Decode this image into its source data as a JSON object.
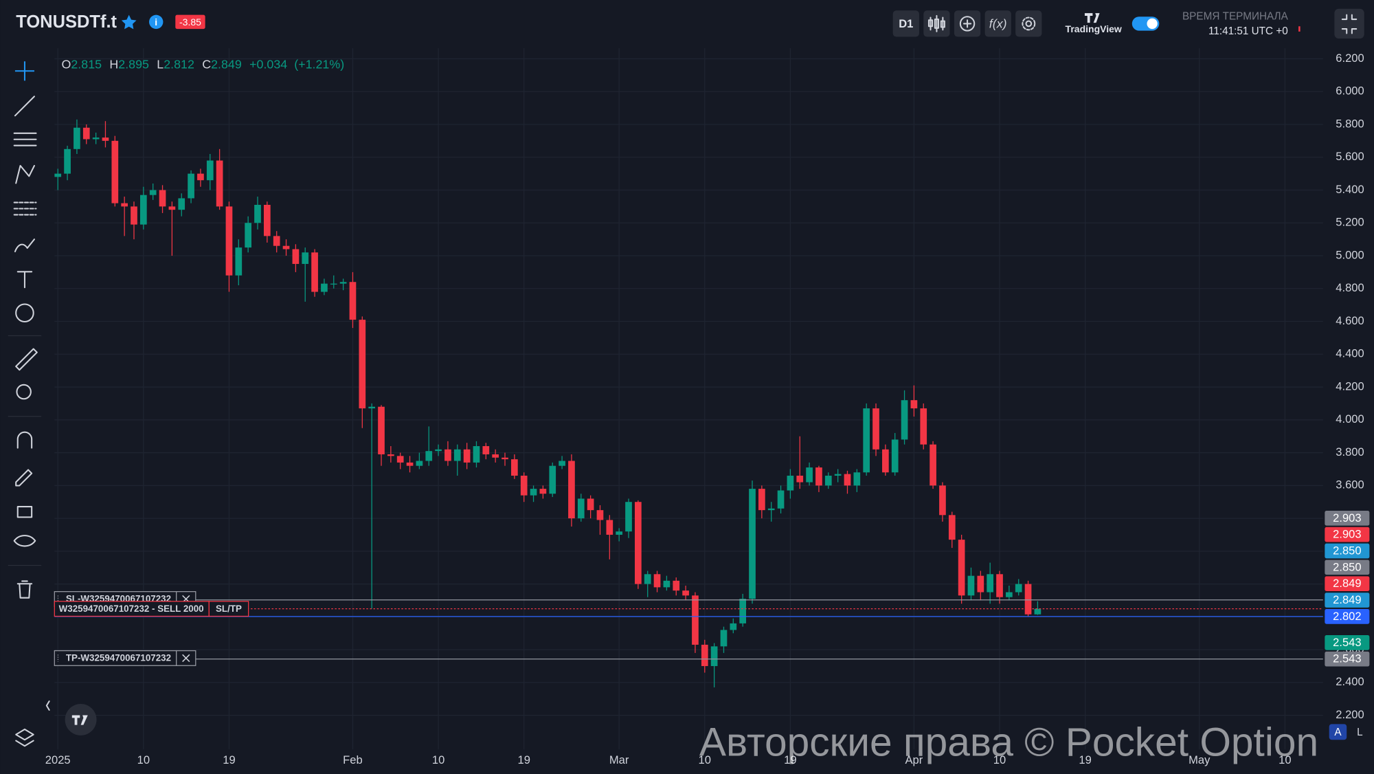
{
  "header": {
    "symbol": "TONUSDTf.t",
    "change_badge": -3.85,
    "timeframe": "D1",
    "brand": "TradingView",
    "time_caption": "ВРЕМЯ ТЕРМИНАЛА",
    "time": "11:41:51 UTC +0"
  },
  "legend": {
    "o_label": "O",
    "open": 2.815,
    "h_label": "H",
    "high": 2.895,
    "l_label": "L",
    "low": 2.812,
    "c_label": "C",
    "close": 2.849,
    "change": "+0.034",
    "change_pct": "(+1.21%)"
  },
  "watermark": "Авторские права © Pocket Option",
  "scale_buttons": [
    "A",
    "L"
  ],
  "chart_data": {
    "type": "candlestick",
    "up_color": "#089981",
    "down_color": "#f23645",
    "grid": true,
    "x": [
      "2025-01-01",
      "2025-01-02",
      "2025-01-03",
      "2025-01-04",
      "2025-01-05",
      "2025-01-06",
      "2025-01-07",
      "2025-01-08",
      "2025-01-09",
      "2025-01-10",
      "2025-01-11",
      "2025-01-12",
      "2025-01-13",
      "2025-01-14",
      "2025-01-15",
      "2025-01-16",
      "2025-01-17",
      "2025-01-18",
      "2025-01-19",
      "2025-01-20",
      "2025-01-21",
      "2025-01-22",
      "2025-01-23",
      "2025-01-24",
      "2025-01-25",
      "2025-01-26",
      "2025-01-27",
      "2025-01-28",
      "2025-01-29",
      "2025-01-30",
      "2025-01-31",
      "2025-02-01",
      "2025-02-02",
      "2025-02-03",
      "2025-02-04",
      "2025-02-05",
      "2025-02-06",
      "2025-02-07",
      "2025-02-08",
      "2025-02-09",
      "2025-02-10",
      "2025-02-11",
      "2025-02-12",
      "2025-02-13",
      "2025-02-14",
      "2025-02-15",
      "2025-02-16",
      "2025-02-17",
      "2025-02-18",
      "2025-02-19",
      "2025-02-20",
      "2025-02-21",
      "2025-02-22",
      "2025-02-23",
      "2025-02-24",
      "2025-02-25",
      "2025-02-26",
      "2025-02-27",
      "2025-02-28",
      "2025-03-01",
      "2025-03-02",
      "2025-03-03",
      "2025-03-04",
      "2025-03-05",
      "2025-03-06",
      "2025-03-07",
      "2025-03-08",
      "2025-03-09",
      "2025-03-10",
      "2025-03-11",
      "2025-03-12",
      "2025-03-13",
      "2025-03-14",
      "2025-03-15",
      "2025-03-16",
      "2025-03-17",
      "2025-03-18",
      "2025-03-19",
      "2025-03-20",
      "2025-03-21",
      "2025-03-22",
      "2025-03-23",
      "2025-03-24",
      "2025-03-25",
      "2025-03-26",
      "2025-03-27",
      "2025-03-28",
      "2025-03-29",
      "2025-03-30",
      "2025-03-31",
      "2025-04-01",
      "2025-04-02",
      "2025-04-03",
      "2025-04-04",
      "2025-04-05",
      "2025-04-06",
      "2025-04-07",
      "2025-04-08",
      "2025-04-09",
      "2025-04-10",
      "2025-04-11",
      "2025-04-12",
      "2025-04-13",
      "2025-04-14"
    ],
    "open": [
      5.48,
      5.5,
      5.65,
      5.78,
      5.71,
      5.72,
      5.7,
      5.32,
      5.3,
      5.19,
      5.37,
      5.4,
      5.3,
      5.28,
      5.35,
      5.5,
      5.46,
      5.58,
      5.3,
      4.88,
      5.05,
      5.2,
      5.31,
      5.12,
      5.06,
      5.04,
      4.95,
      5.02,
      4.78,
      4.83,
      4.83,
      4.84,
      4.61,
      4.07,
      4.08,
      3.79,
      3.78,
      3.74,
      3.72,
      3.75,
      3.81,
      3.82,
      3.75,
      3.82,
      3.74,
      3.84,
      3.79,
      3.77,
      3.76,
      3.66,
      3.54,
      3.58,
      3.55,
      3.72,
      3.75,
      3.4,
      3.52,
      3.45,
      3.39,
      3.3,
      3.32,
      3.5,
      3.0,
      3.06,
      2.98,
      3.02,
      2.96,
      2.93,
      2.63,
      2.5,
      2.62,
      2.72,
      2.76,
      2.91,
      3.58,
      3.45,
      3.46,
      3.57,
      3.66,
      3.62,
      3.71,
      3.6,
      3.66,
      3.67,
      3.6,
      3.68,
      4.07,
      3.82,
      3.68,
      3.88,
      4.12,
      4.07,
      3.85,
      3.6,
      3.42,
      3.27,
      2.93,
      3.05,
      2.95,
      3.06,
      2.92,
      2.95,
      3.0,
      2.815
    ],
    "high": [
      5.53,
      5.67,
      5.83,
      5.8,
      5.75,
      5.82,
      5.73,
      5.36,
      5.33,
      5.42,
      5.44,
      5.43,
      5.33,
      5.38,
      5.52,
      5.53,
      5.62,
      5.65,
      5.33,
      5.1,
      5.24,
      5.36,
      5.33,
      5.15,
      5.1,
      5.07,
      5.05,
      5.04,
      4.86,
      4.88,
      4.86,
      4.9,
      4.63,
      4.1,
      4.09,
      3.84,
      3.8,
      3.78,
      3.8,
      3.96,
      3.85,
      3.87,
      3.85,
      3.86,
      3.87,
      3.86,
      3.82,
      3.8,
      3.79,
      3.68,
      3.6,
      3.6,
      3.74,
      3.78,
      3.79,
      3.55,
      3.54,
      3.48,
      3.42,
      3.34,
      3.52,
      3.51,
      3.08,
      3.08,
      3.05,
      3.04,
      2.99,
      2.95,
      2.66,
      2.64,
      2.74,
      2.79,
      2.94,
      3.63,
      3.6,
      3.5,
      3.6,
      3.7,
      3.9,
      3.74,
      3.72,
      3.68,
      3.7,
      3.69,
      3.7,
      4.1,
      4.1,
      3.85,
      3.92,
      4.18,
      4.21,
      4.1,
      3.87,
      3.62,
      3.44,
      3.3,
      3.1,
      3.08,
      3.13,
      3.08,
      2.99,
      3.03,
      3.02,
      2.895
    ],
    "low": [
      5.4,
      5.46,
      5.62,
      5.68,
      5.68,
      5.66,
      5.3,
      5.12,
      5.1,
      5.16,
      5.34,
      5.26,
      5.0,
      5.24,
      5.32,
      5.42,
      5.4,
      5.28,
      4.78,
      4.82,
      5.02,
      5.16,
      5.08,
      5.02,
      5.0,
      4.9,
      4.72,
      4.75,
      4.76,
      4.8,
      4.79,
      4.56,
      3.95,
      2.85,
      3.72,
      3.74,
      3.7,
      3.68,
      3.7,
      3.72,
      3.78,
      3.72,
      3.66,
      3.7,
      3.71,
      3.76,
      3.74,
      3.72,
      3.64,
      3.5,
      3.5,
      3.52,
      3.53,
      3.7,
      3.35,
      3.38,
      3.4,
      3.3,
      3.15,
      3.26,
      3.28,
      2.97,
      2.92,
      2.95,
      2.96,
      2.93,
      2.9,
      2.58,
      2.46,
      2.37,
      2.58,
      2.7,
      2.74,
      2.88,
      3.4,
      3.38,
      3.43,
      3.52,
      3.58,
      3.6,
      3.56,
      3.58,
      3.62,
      3.55,
      3.56,
      3.66,
      3.78,
      3.66,
      3.66,
      3.85,
      4.02,
      3.82,
      3.58,
      3.38,
      3.22,
      2.88,
      2.9,
      2.9,
      2.88,
      2.88,
      2.9,
      2.93,
      2.8,
      2.812
    ],
    "close": [
      5.5,
      5.65,
      5.78,
      5.71,
      5.72,
      5.7,
      5.32,
      5.3,
      5.19,
      5.37,
      5.4,
      5.3,
      5.28,
      5.35,
      5.5,
      5.46,
      5.58,
      5.3,
      4.88,
      5.05,
      5.2,
      5.31,
      5.12,
      5.06,
      5.04,
      4.95,
      5.02,
      4.78,
      4.83,
      4.83,
      4.84,
      4.61,
      4.07,
      4.08,
      3.79,
      3.78,
      3.74,
      3.72,
      3.75,
      3.81,
      3.82,
      3.75,
      3.82,
      3.74,
      3.84,
      3.79,
      3.77,
      3.76,
      3.66,
      3.54,
      3.58,
      3.55,
      3.72,
      3.75,
      3.4,
      3.52,
      3.45,
      3.39,
      3.3,
      3.32,
      3.5,
      3.0,
      3.06,
      2.98,
      3.02,
      2.96,
      2.93,
      2.63,
      2.5,
      2.62,
      2.72,
      2.76,
      2.91,
      3.58,
      3.45,
      3.46,
      3.57,
      3.66,
      3.62,
      3.71,
      3.6,
      3.66,
      3.67,
      3.6,
      3.68,
      4.07,
      3.82,
      3.68,
      3.88,
      4.12,
      4.07,
      3.85,
      3.6,
      3.42,
      3.27,
      2.93,
      3.05,
      2.95,
      3.06,
      2.92,
      2.95,
      3.0,
      2.815,
      2.849
    ],
    "xlim": [
      "2024-12-31",
      "2025-05-14"
    ],
    "xticks": [
      {
        "value": "2025-01-01",
        "label": "2025"
      },
      {
        "value": "2025-01-10",
        "label": "10"
      },
      {
        "value": "2025-01-19",
        "label": "19"
      },
      {
        "value": "2025-02-01",
        "label": "Feb"
      },
      {
        "value": "2025-02-10",
        "label": "10"
      },
      {
        "value": "2025-02-19",
        "label": "19"
      },
      {
        "value": "2025-03-01",
        "label": "Mar"
      },
      {
        "value": "2025-03-10",
        "label": "10"
      },
      {
        "value": "2025-03-19",
        "label": "19"
      },
      {
        "value": "2025-04-01",
        "label": "Apr"
      },
      {
        "value": "2025-04-10",
        "label": "10"
      },
      {
        "value": "2025-04-19",
        "label": "19"
      },
      {
        "value": "2025-05-01",
        "label": "May"
      },
      {
        "value": "2025-05-10",
        "label": "10"
      }
    ],
    "ylim": [
      2.0,
      6.26
    ],
    "yticks": [
      {
        "value": 2.2,
        "label": "2.200"
      },
      {
        "value": 2.4,
        "label": "2.400"
      },
      {
        "value": 2.6,
        "label": "2.600"
      },
      {
        "value": 2.8,
        "label": "2.800"
      },
      {
        "value": 3.0,
        "label": "3.000"
      },
      {
        "value": 3.2,
        "label": "3.200"
      },
      {
        "value": 3.4,
        "label": "3.400"
      },
      {
        "value": 3.6,
        "label": "3.600"
      },
      {
        "value": 3.8,
        "label": "3.800"
      },
      {
        "value": 4.0,
        "label": "4.000"
      },
      {
        "value": 4.2,
        "label": "4.200"
      },
      {
        "value": 4.4,
        "label": "4.400"
      },
      {
        "value": 4.6,
        "label": "4.600"
      },
      {
        "value": 4.8,
        "label": "4.800"
      },
      {
        "value": 5.0,
        "label": "5.000"
      },
      {
        "value": 5.2,
        "label": "5.200"
      },
      {
        "value": 5.4,
        "label": "5.400"
      },
      {
        "value": 5.6,
        "label": "5.600"
      },
      {
        "value": 5.8,
        "label": "5.800"
      },
      {
        "value": 6.0,
        "label": "6.000"
      },
      {
        "value": 6.2,
        "label": "6.200"
      }
    ],
    "price_markers": [
      {
        "value": 2.903,
        "label": "2.903",
        "color": "#787b86"
      },
      {
        "value": 2.903,
        "label": "2.903",
        "color": "#f23645"
      },
      {
        "value": 2.85,
        "label": "2.850",
        "color": "#2196d3"
      },
      {
        "value": 2.85,
        "label": "2.850",
        "color": "#787b86"
      },
      {
        "value": 2.849,
        "label": "2.849",
        "color": "#f23645"
      },
      {
        "value": 2.849,
        "label": "2.849",
        "color": "#2196d3"
      },
      {
        "value": 2.802,
        "label": "2.802",
        "color": "#2962ff"
      },
      {
        "value": 2.543,
        "label": "2.543",
        "color": "#089981"
      },
      {
        "value": 2.543,
        "label": "2.543",
        "color": "#787b86"
      }
    ],
    "price_lines": [
      {
        "value": 2.903,
        "color": "#9598a1",
        "dash": false
      },
      {
        "value": 2.849,
        "color": "#f23645",
        "dash": true
      },
      {
        "value": 2.802,
        "color": "#2962ff",
        "dash": false
      },
      {
        "value": 2.543,
        "color": "#9598a1",
        "dash": false
      }
    ],
    "orders": [
      {
        "label": "SL-W3259470067107232",
        "value": 2.903,
        "close": true
      },
      {
        "label": "W3259470067107232 - SELL 2000",
        "value": 2.849,
        "button": "SL/TP",
        "color": "#f23645"
      },
      {
        "label": "TP-W3259470067107232",
        "value": 2.543,
        "close": true
      }
    ]
  }
}
